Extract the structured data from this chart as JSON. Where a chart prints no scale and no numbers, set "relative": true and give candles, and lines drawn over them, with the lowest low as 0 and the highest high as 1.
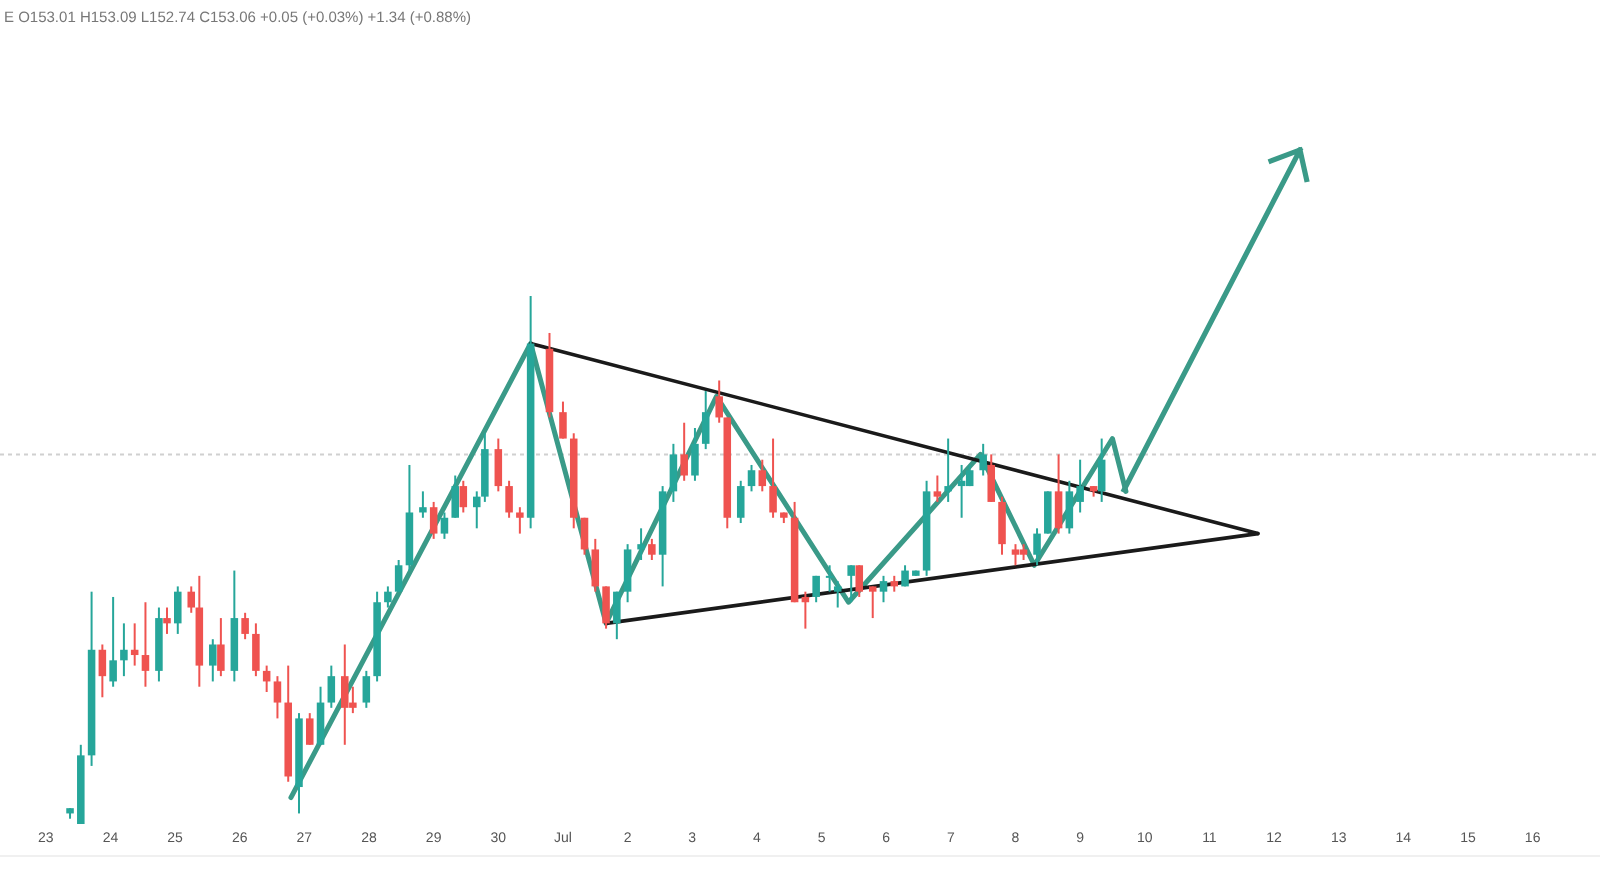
{
  "chart_data": {
    "type": "candlestick",
    "title": "E O153.01 H153.09 L152.74 C153.06 +0.05 (+0.03%) +1.34 (+0.88%)",
    "relative": true,
    "colors": [
      "#26a69a",
      "#26a69a",
      "#26a69a",
      "#ef5350",
      "#26a69a",
      "#26a69a",
      "#ef5350",
      "#ef5350",
      "#26a69a",
      "#ef5350",
      "#26a69a",
      "#ef5350",
      "#ef5350",
      "#26a69a",
      "#ef5350",
      "#26a69a",
      "#ef5350",
      "#ef5350",
      "#ef5350",
      "#ef5350",
      "#ef5350",
      "#26a69a",
      "#ef5350",
      "#26a69a",
      "#26a69a",
      "#ef5350",
      "#ef5350",
      "#26a69a",
      "#26a69a",
      "#26a69a",
      "#26a69a",
      "#26a69a",
      "#26a69a",
      "#ef5350",
      "#26a69a",
      "#26a69a",
      "#ef5350",
      "#26a69a",
      "#26a69a",
      "#ef5350",
      "#ef5350",
      "#ef5350",
      "#26a69a",
      "#ef5350",
      "#ef5350",
      "#ef5350",
      "#ef5350",
      "#ef5350",
      "#ef5350",
      "#26a69a",
      "#26a69a",
      "#26a69a",
      "#ef5350",
      "#26a69a",
      "#26a69a",
      "#ef5350",
      "#26a69a",
      "#26a69a",
      "#ef5350",
      "#ef5350",
      "#26a69a",
      "#26a69a",
      "#ef5350",
      "#ef5350",
      "#ef5350",
      "#ef5350",
      "#ef5350",
      "#26a69a",
      "#26a69a",
      "#26a69a",
      "#26a69a",
      "#ef5350",
      "#ef5350",
      "#26a69a",
      "#ef5350",
      "#26a69a",
      "#26a69a",
      "#26a69a",
      "#ef5350",
      "#26a69a",
      "#26a69a",
      "#26a69a",
      "#26a69a",
      "#ef5350",
      "#ef5350",
      "#ef5350",
      "#ef5350",
      "#26a69a",
      "#26a69a",
      "#ef5350",
      "#26a69a",
      "#26a69a",
      "#ef5350",
      "#26a69a"
    ],
    "xlim": [
      "--06-22T07:00",
      "--07-17T01:00"
    ],
    "xticks": [
      {
        "value": "--06-23",
        "label": "23"
      },
      {
        "value": "--06-24",
        "label": "24"
      },
      {
        "value": "--06-25",
        "label": "25"
      },
      {
        "value": "--06-26",
        "label": "26"
      },
      {
        "value": "--06-27",
        "label": "27"
      },
      {
        "value": "--06-28",
        "label": "28"
      },
      {
        "value": "--06-29",
        "label": "29"
      },
      {
        "value": "--06-30",
        "label": "30"
      },
      {
        "value": "--07-01",
        "label": "Jul"
      },
      {
        "value": "--07-02",
        "label": "2"
      },
      {
        "value": "--07-03",
        "label": "3"
      },
      {
        "value": "--07-04",
        "label": "4"
      },
      {
        "value": "--07-05",
        "label": "5"
      },
      {
        "value": "--07-06",
        "label": "6"
      },
      {
        "value": "--07-07",
        "label": "7"
      },
      {
        "value": "--07-08",
        "label": "8"
      },
      {
        "value": "--07-09",
        "label": "9"
      },
      {
        "value": "--07-10",
        "label": "10"
      },
      {
        "value": "--07-11",
        "label": "11"
      },
      {
        "value": "--07-12",
        "label": "12"
      },
      {
        "value": "--07-13",
        "label": "13"
      },
      {
        "value": "--07-14",
        "label": "14"
      },
      {
        "value": "--07-15",
        "label": "15"
      },
      {
        "value": "--07-16",
        "label": "16"
      }
    ],
    "x": [
      "--06-23T09:00",
      "--06-23T13:00",
      "--06-23T17:00",
      "--06-23T21:00",
      "--06-24T01:00",
      "--06-24T05:00",
      "--06-24T09:00",
      "--06-24T13:00",
      "--06-24T18:00",
      "--06-24T21:00",
      "--06-25T01:00",
      "--06-25T06:00",
      "--06-25T09:00",
      "--06-25T14:00",
      "--06-25T17:00",
      "--06-25T22:00",
      "--06-26T02:00",
      "--06-26T06:00",
      "--06-26T10:00",
      "--06-26T14:00",
      "--06-26T18:00",
      "--06-26T22:00",
      "--06-27T02:00",
      "--06-27T06:00",
      "--06-27T10:00",
      "--06-27T15:00",
      "--06-27T18:00",
      "--06-27T23:00",
      "--06-28T03:00",
      "--06-28T07:00",
      "--06-28T11:00",
      "--06-28T15:00",
      "--06-28T20:00",
      "--06-29T00:00",
      "--06-29T04:00",
      "--06-29T08:00",
      "--06-29T11:00",
      "--06-29T16:00",
      "--06-29T19:00",
      "--06-30T00:00",
      "--06-30T04:00",
      "--06-30T08:00",
      "--06-30T12:00",
      "--06-30T19:00",
      "--07-01T00:00",
      "--07-01T04:00",
      "--07-01T08:00",
      "--07-01T12:00",
      "--07-01T16:00",
      "--07-01T20:00",
      "--07-02T00:00",
      "--07-02T05:00",
      "--07-02T09:00",
      "--07-02T13:00",
      "--07-02T17:00",
      "--07-02T21:00",
      "--07-03T01:00",
      "--07-03T05:00",
      "--07-03T10:00",
      "--07-03T13:00",
      "--07-03T18:00",
      "--07-03T22:00",
      "--07-04T02:00",
      "--07-04T06:00",
      "--07-04T10:00",
      "--07-04T14:00",
      "--07-04T18:00",
      "--07-04T22:00",
      "--07-05T03:00",
      "--07-05T06:00",
      "--07-05T11:00",
      "--07-05T14:00",
      "--07-05T19:00",
      "--07-05T23:00",
      "--07-06T03:00",
      "--07-06T07:00",
      "--07-06T11:00",
      "--07-06T15:00",
      "--07-06T19:00",
      "--07-06T23:00",
      "--07-07T04:00",
      "--07-07T07:00",
      "--07-07T12:00",
      "--07-07T15:00",
      "--07-07T19:00",
      "--07-08T00:00",
      "--07-08T03:00",
      "--07-08T08:00",
      "--07-08T12:00",
      "--07-08T16:00",
      "--07-08T20:00",
      "--07-09T00:00",
      "--07-09T05:00",
      "--07-09T08:00"
    ],
    "ohlc": [
      [
        0.02,
        0.03,
        0.01,
        0.03
      ],
      [
        0,
        0.15,
        0,
        0.13
      ],
      [
        0.13,
        0.44,
        0.11,
        0.33
      ],
      [
        0.33,
        0.34,
        0.24,
        0.28
      ],
      [
        0.27,
        0.43,
        0.26,
        0.31
      ],
      [
        0.31,
        0.38,
        0.28,
        0.33
      ],
      [
        0.33,
        0.38,
        0.3,
        0.32
      ],
      [
        0.32,
        0.42,
        0.26,
        0.29
      ],
      [
        0.29,
        0.41,
        0.27,
        0.39
      ],
      [
        0.39,
        0.41,
        0.36,
        0.38
      ],
      [
        0.38,
        0.45,
        0.36,
        0.44
      ],
      [
        0.44,
        0.45,
        0.4,
        0.41
      ],
      [
        0.41,
        0.47,
        0.26,
        0.3
      ],
      [
        0.3,
        0.35,
        0.27,
        0.34
      ],
      [
        0.34,
        0.39,
        0.28,
        0.29
      ],
      [
        0.29,
        0.48,
        0.27,
        0.39
      ],
      [
        0.39,
        0.4,
        0.35,
        0.36
      ],
      [
        0.36,
        0.38,
        0.28,
        0.29
      ],
      [
        0.29,
        0.3,
        0.25,
        0.27
      ],
      [
        0.27,
        0.28,
        0.2,
        0.23
      ],
      [
        0.23,
        0.3,
        0.08,
        0.09
      ],
      [
        0.07,
        0.21,
        0.02,
        0.2
      ],
      [
        0.2,
        0.21,
        0.15,
        0.15
      ],
      [
        0.15,
        0.26,
        0.15,
        0.23
      ],
      [
        0.23,
        0.3,
        0.22,
        0.28
      ],
      [
        0.28,
        0.34,
        0.15,
        0.22
      ],
      [
        0.23,
        0.26,
        0.21,
        0.22
      ],
      [
        0.23,
        0.29,
        0.22,
        0.28
      ],
      [
        0.28,
        0.44,
        0.27,
        0.42
      ],
      [
        0.42,
        0.45,
        0.41,
        0.44
      ],
      [
        0.44,
        0.5,
        0.44,
        0.49
      ],
      [
        0.49,
        0.68,
        0.48,
        0.59
      ],
      [
        0.59,
        0.63,
        0.58,
        0.6
      ],
      [
        0.6,
        0.61,
        0.54,
        0.55
      ],
      [
        0.55,
        0.59,
        0.54,
        0.58
      ],
      [
        0.58,
        0.66,
        0.58,
        0.64
      ],
      [
        0.64,
        0.65,
        0.59,
        0.6
      ],
      [
        0.6,
        0.63,
        0.56,
        0.62
      ],
      [
        0.62,
        0.74,
        0.61,
        0.71
      ],
      [
        0.71,
        0.73,
        0.63,
        0.64
      ],
      [
        0.64,
        0.65,
        0.58,
        0.59
      ],
      [
        0.59,
        0.6,
        0.55,
        0.58
      ],
      [
        0.58,
        1,
        0.56,
        0.91
      ],
      [
        0.9,
        0.93,
        0.77,
        0.78
      ],
      [
        0.78,
        0.8,
        0.73,
        0.73
      ],
      [
        0.73,
        0.74,
        0.56,
        0.58
      ],
      [
        0.58,
        0.58,
        0.51,
        0.52
      ],
      [
        0.52,
        0.54,
        0.44,
        0.45
      ],
      [
        0.45,
        0.45,
        0.37,
        0.38
      ],
      [
        0.38,
        0.44,
        0.35,
        0.44
      ],
      [
        0.44,
        0.53,
        0.42,
        0.52
      ],
      [
        0.52,
        0.56,
        0.5,
        0.53
      ],
      [
        0.53,
        0.54,
        0.5,
        0.51
      ],
      [
        0.51,
        0.64,
        0.45,
        0.63
      ],
      [
        0.63,
        0.72,
        0.61,
        0.7
      ],
      [
        0.7,
        0.76,
        0.65,
        0.66
      ],
      [
        0.66,
        0.75,
        0.65,
        0.72
      ],
      [
        0.72,
        0.82,
        0.71,
        0.78
      ],
      [
        0.81,
        0.84,
        0.76,
        0.77
      ],
      [
        0.77,
        0.77,
        0.56,
        0.58
      ],
      [
        0.58,
        0.65,
        0.57,
        0.64
      ],
      [
        0.64,
        0.68,
        0.63,
        0.67
      ],
      [
        0.67,
        0.69,
        0.63,
        0.64
      ],
      [
        0.64,
        0.73,
        0.58,
        0.59
      ],
      [
        0.59,
        0.59,
        0.57,
        0.58
      ],
      [
        0.58,
        0.61,
        0.42,
        0.42
      ],
      [
        0.43,
        0.44,
        0.37,
        0.42
      ],
      [
        0.43,
        0.47,
        0.42,
        0.47
      ],
      [
        0.47,
        0.49,
        0.44,
        0.47
      ],
      [
        0.44,
        0.46,
        0.41,
        0.45
      ],
      [
        0.47,
        0.49,
        0.42,
        0.49
      ],
      [
        0.49,
        0.49,
        0.43,
        0.44
      ],
      [
        0.45,
        0.45,
        0.39,
        0.44
      ],
      [
        0.44,
        0.47,
        0.42,
        0.46
      ],
      [
        0.46,
        0.47,
        0.44,
        0.45
      ],
      [
        0.45,
        0.49,
        0.45,
        0.48
      ],
      [
        0.47,
        0.48,
        0.47,
        0.48
      ],
      [
        0.48,
        0.65,
        0.47,
        0.63
      ],
      [
        0.63,
        0.66,
        0.61,
        0.62
      ],
      [
        0.63,
        0.73,
        0.61,
        0.64
      ],
      [
        0.64,
        0.68,
        0.58,
        0.65
      ],
      [
        0.64,
        0.68,
        0.64,
        0.67
      ],
      [
        0.67,
        0.72,
        0.66,
        0.7
      ],
      [
        0.68,
        0.7,
        0.61,
        0.61
      ],
      [
        0.61,
        0.62,
        0.51,
        0.53
      ],
      [
        0.52,
        0.53,
        0.49,
        0.51
      ],
      [
        0.52,
        0.53,
        0.5,
        0.51
      ],
      [
        0.51,
        0.56,
        0.49,
        0.55
      ],
      [
        0.55,
        0.63,
        0.55,
        0.63
      ],
      [
        0.63,
        0.7,
        0.55,
        0.56
      ],
      [
        0.56,
        0.65,
        0.55,
        0.63
      ],
      [
        0.61,
        0.69,
        0.59,
        0.64
      ],
      [
        0.64,
        0.64,
        0.62,
        0.63
      ],
      [
        0.63,
        0.73,
        0.61,
        0.69
      ]
    ],
    "series": [
      {
        "type": "line",
        "color": "#3a9a88",
        "x": [
          "--06-26T19:00",
          "--06-30T12:00",
          "--07-01T16:00",
          "--07-03T09:00",
          "--07-05T10:00",
          "--07-07T11:00",
          "--07-08T07:00",
          "--07-09T12:00",
          "--07-09T17:00"
        ],
        "values": [
          0.05,
          0.91,
          0.38,
          0.81,
          0.42,
          0.7,
          0.49,
          0.73,
          0.63
        ]
      },
      {
        "type": "line",
        "color": "#1a1a1a",
        "x": [
          "--06-30T12:00",
          "--07-11T18:00"
        ],
        "values": [
          0.91,
          0.55
        ]
      },
      {
        "type": "line",
        "color": "#1a1a1a",
        "x": [
          "--07-01T16:00",
          "--07-11T18:00"
        ],
        "values": [
          0.38,
          0.55
        ]
      }
    ],
    "ref_lines": [
      {
        "axis": "y",
        "value": 0.7,
        "color": "#d0d0d0",
        "line_style": "dotted"
      }
    ]
  }
}
